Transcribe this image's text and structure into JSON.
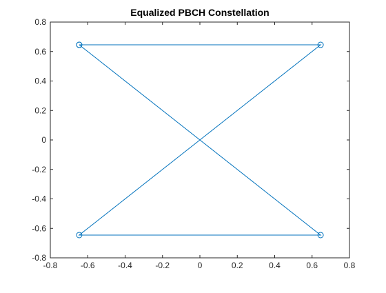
{
  "chart_data": {
    "type": "line",
    "title": "Equalized PBCH Constellation",
    "xlabel": "",
    "ylabel": "",
    "xlim": [
      -0.8,
      0.8
    ],
    "ylim": [
      -0.8,
      0.8
    ],
    "xticks": [
      -0.8,
      -0.6,
      -0.4,
      -0.2,
      0,
      0.2,
      0.4,
      0.6,
      0.8
    ],
    "yticks": [
      -0.8,
      -0.6,
      -0.4,
      -0.2,
      0,
      0.2,
      0.4,
      0.6,
      0.8
    ],
    "xtick_labels": [
      "-0.8",
      "-0.6",
      "-0.4",
      "-0.2",
      "0",
      "0.2",
      "0.4",
      "0.6",
      "0.8"
    ],
    "ytick_labels": [
      "-0.8",
      "-0.6",
      "-0.4",
      "-0.2",
      "0",
      "0.2",
      "0.4",
      "0.6",
      "0.8"
    ],
    "grid": false,
    "marker": "circle",
    "series": [
      {
        "x": [
          -0.6455,
          0.6455,
          -0.6455,
          0.6455,
          -0.6455
        ],
        "y": [
          0.6455,
          0.6455,
          -0.6455,
          -0.6455,
          0.6455
        ]
      }
    ],
    "colors": {
      "series": "#0072BD",
      "axis": "#262626",
      "background": "#ffffff"
    }
  }
}
